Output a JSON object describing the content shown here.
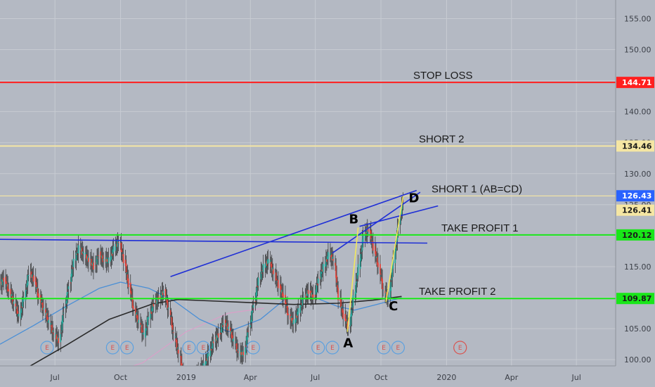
{
  "chart_data": {
    "type": "candlestick",
    "ylim": [
      99,
      158
    ],
    "y_ticks": [
      {
        "value": 100,
        "label": "100.00"
      },
      {
        "value": 105,
        "label": "105.00"
      },
      {
        "value": 110,
        "label": "110.00"
      },
      {
        "value": 115,
        "label": "115.00"
      },
      {
        "value": 120,
        "label": "120.00"
      },
      {
        "value": 125,
        "label": "125.00"
      },
      {
        "value": 130,
        "label": "130.00"
      },
      {
        "value": 135,
        "label": "135.00"
      },
      {
        "value": 140,
        "label": "140.00"
      },
      {
        "value": 145,
        "label": "145.00"
      },
      {
        "value": 150,
        "label": "150.00"
      },
      {
        "value": 155,
        "label": "155.00"
      }
    ],
    "x_ticks": [
      {
        "label": "Jul",
        "date": "2018-07-01"
      },
      {
        "label": "Oct",
        "date": "2018-10-01"
      },
      {
        "label": "2019",
        "date": "2019-01-01"
      },
      {
        "label": "Apr",
        "date": "2019-04-01"
      },
      {
        "label": "Jul",
        "date": "2019-07-01"
      },
      {
        "label": "Oct",
        "date": "2019-10-01"
      },
      {
        "label": "2020",
        "date": "2020-01-01"
      },
      {
        "label": "Apr",
        "date": "2020-04-01"
      },
      {
        "label": "Jul",
        "date": "2020-07-01"
      }
    ],
    "xlim": [
      "2018-04-15",
      "2020-08-25"
    ],
    "levels": [
      {
        "label": "STOP LOSS",
        "tag": "144.71",
        "value": 144.71,
        "color": "#ff1f1f",
        "tag_bg": "#ff1f1f",
        "tag_fg": "#ffffff"
      },
      {
        "label": "SHORT 2",
        "tag": "134.46",
        "value": 134.46,
        "color": "#f5e6a3",
        "tag_bg": "#f5e6a3",
        "tag_fg": "#1a1a1a"
      },
      {
        "label": "SHORT 1 (AB=CD)",
        "tag": "126.41",
        "value": 126.41,
        "color": "#f5e6a3",
        "tag_bg": "#f5e6a3",
        "tag_fg": "#1a1a1a"
      },
      {
        "label": "TAKE PROFIT 1",
        "tag": "120.12",
        "value": 120.12,
        "color": "#19e619",
        "tag_bg": "#19e619",
        "tag_fg": "#1a1a1a"
      },
      {
        "label": "TAKE PROFIT 2",
        "tag": "109.87",
        "value": 109.87,
        "color": "#19e619",
        "tag_bg": "#19e619",
        "tag_fg": "#1a1a1a"
      }
    ],
    "last_price": {
      "tag": "126.43",
      "value": 126.43,
      "tag_bg": "#2962ff",
      "tag_fg": "#ffffff"
    },
    "pattern_points": [
      {
        "label": "A",
        "date": "2019-08-15",
        "price": 104.5
      },
      {
        "label": "B",
        "date": "2019-08-30",
        "price": 121.3
      },
      {
        "label": "C",
        "date": "2019-10-08",
        "price": 109.3
      },
      {
        "label": "D",
        "date": "2019-11-01",
        "price": 126.3
      }
    ],
    "earnings_markers": [
      "2018-06-20",
      "2018-09-20",
      "2018-10-10",
      "2019-01-05",
      "2019-01-25",
      "2019-04-05",
      "2019-07-05",
      "2019-07-25",
      "2019-10-05",
      "2019-10-25",
      "2020-01-20"
    ],
    "candles": [
      [
        "2018-04-16",
        112,
        113
      ],
      [
        "2018-04-23",
        113,
        111
      ],
      [
        "2018-04-30",
        111,
        109
      ],
      [
        "2018-05-07",
        109,
        107
      ],
      [
        "2018-05-14",
        107,
        110
      ],
      [
        "2018-05-21",
        110,
        114
      ],
      [
        "2018-05-28",
        114,
        113
      ],
      [
        "2018-06-04",
        113,
        110
      ],
      [
        "2018-06-11",
        110,
        108
      ],
      [
        "2018-06-18",
        108,
        106
      ],
      [
        "2018-06-25",
        106,
        104
      ],
      [
        "2018-07-02",
        104,
        103
      ],
      [
        "2018-07-09",
        103,
        108
      ],
      [
        "2018-07-16",
        108,
        112
      ],
      [
        "2018-07-23",
        112,
        116
      ],
      [
        "2018-07-30",
        116,
        118
      ],
      [
        "2018-08-06",
        118,
        117
      ],
      [
        "2018-08-13",
        117,
        116
      ],
      [
        "2018-08-20",
        116,
        115
      ],
      [
        "2018-08-27",
        115,
        117
      ],
      [
        "2018-09-03",
        117,
        116
      ],
      [
        "2018-09-10",
        116,
        116
      ],
      [
        "2018-09-17",
        116,
        118
      ],
      [
        "2018-09-24",
        118,
        119
      ],
      [
        "2018-10-01",
        119,
        116
      ],
      [
        "2018-10-08",
        116,
        112
      ],
      [
        "2018-10-15",
        112,
        108
      ],
      [
        "2018-10-22",
        108,
        106
      ],
      [
        "2018-10-29",
        106,
        104
      ],
      [
        "2018-11-05",
        104,
        107
      ],
      [
        "2018-11-12",
        107,
        109
      ],
      [
        "2018-11-19",
        109,
        110
      ],
      [
        "2018-11-26",
        110,
        111
      ],
      [
        "2018-12-03",
        111,
        108
      ],
      [
        "2018-12-10",
        108,
        104
      ],
      [
        "2018-12-17",
        104,
        101
      ],
      [
        "2018-12-24",
        101,
        97
      ],
      [
        "2018-12-31",
        97,
        95
      ],
      [
        "2019-01-07",
        95,
        97
      ],
      [
        "2019-01-14",
        97,
        98
      ],
      [
        "2019-01-21",
        98,
        99
      ],
      [
        "2019-01-28",
        99,
        101
      ],
      [
        "2019-02-04",
        101,
        103
      ],
      [
        "2019-02-11",
        103,
        104
      ],
      [
        "2019-02-18",
        104,
        106
      ],
      [
        "2019-02-25",
        106,
        105
      ],
      [
        "2019-03-04",
        105,
        103
      ],
      [
        "2019-03-11",
        103,
        101
      ],
      [
        "2019-03-18",
        101,
        101
      ],
      [
        "2019-03-25",
        101,
        105
      ],
      [
        "2019-04-01",
        105,
        109
      ],
      [
        "2019-04-08",
        109,
        113
      ],
      [
        "2019-04-15",
        113,
        115
      ],
      [
        "2019-04-22",
        115,
        116
      ],
      [
        "2019-04-29",
        116,
        114
      ],
      [
        "2019-05-06",
        114,
        112
      ],
      [
        "2019-05-13",
        112,
        110
      ],
      [
        "2019-05-20",
        110,
        107
      ],
      [
        "2019-05-27",
        107,
        106
      ],
      [
        "2019-06-03",
        106,
        108
      ],
      [
        "2019-06-10",
        108,
        110
      ],
      [
        "2019-06-17",
        110,
        111
      ],
      [
        "2019-06-24",
        111,
        110
      ],
      [
        "2019-07-01",
        110,
        113
      ],
      [
        "2019-07-08",
        113,
        115
      ],
      [
        "2019-07-15",
        115,
        117
      ],
      [
        "2019-07-22",
        117,
        116
      ],
      [
        "2019-07-29",
        116,
        110
      ],
      [
        "2019-08-05",
        110,
        107
      ],
      [
        "2019-08-12",
        107,
        105
      ],
      [
        "2019-08-19",
        105,
        110
      ],
      [
        "2019-08-26",
        110,
        115
      ],
      [
        "2019-09-02",
        115,
        120
      ],
      [
        "2019-09-09",
        120,
        121
      ],
      [
        "2019-09-16",
        121,
        118
      ],
      [
        "2019-09-23",
        118,
        115
      ],
      [
        "2019-09-30",
        115,
        111
      ],
      [
        "2019-10-07",
        111,
        110
      ],
      [
        "2019-10-14",
        110,
        116
      ],
      [
        "2019-10-21",
        116,
        122
      ],
      [
        "2019-10-28",
        122,
        126
      ]
    ],
    "ma_short": [
      [
        "2018-04-15",
        102.5
      ],
      [
        "2018-06-01",
        105.5
      ],
      [
        "2018-07-15",
        108.5
      ],
      [
        "2018-09-01",
        111.5
      ],
      [
        "2018-10-01",
        112.5
      ],
      [
        "2018-11-10",
        111.5
      ],
      [
        "2018-12-15",
        109.5
      ],
      [
        "2019-01-20",
        106.5
      ],
      [
        "2019-03-01",
        104.5
      ],
      [
        "2019-04-15",
        106.5
      ],
      [
        "2019-05-20",
        109.8
      ],
      [
        "2019-07-01",
        110.0
      ],
      [
        "2019-08-01",
        108.6
      ],
      [
        "2019-08-25",
        108.0
      ],
      [
        "2019-09-25",
        108.9
      ],
      [
        "2019-10-30",
        110.0
      ]
    ],
    "ma_long": [
      [
        "2018-05-20",
        98.5
      ],
      [
        "2018-07-15",
        102.2
      ],
      [
        "2018-09-15",
        106.5
      ],
      [
        "2018-11-15",
        109.0
      ],
      [
        "2018-12-20",
        109.7
      ],
      [
        "2019-02-01",
        109.5
      ],
      [
        "2019-04-01",
        109.2
      ],
      [
        "2019-06-01",
        108.9
      ],
      [
        "2019-08-01",
        109.1
      ],
      [
        "2019-09-20",
        109.6
      ],
      [
        "2019-10-30",
        110.2
      ]
    ],
    "ma_pink": [
      [
        "2018-08-01",
        96.0
      ],
      [
        "2018-11-01",
        99.5
      ],
      [
        "2019-01-01",
        104.5
      ],
      [
        "2019-03-01",
        107.5
      ],
      [
        "2019-04-20",
        108.3
      ]
    ],
    "trendlines": [
      {
        "color": "#1f2fd6",
        "p1": [
          "2018-04-15",
          119.4
        ],
        "p2": [
          "2019-12-05",
          118.8
        ]
      },
      {
        "color": "#1f2fd6",
        "p1": [
          "2018-12-10",
          113.4
        ],
        "p2": [
          "2019-11-20",
          127.3
        ]
      },
      {
        "color": "#1f2fd6",
        "p1": [
          "2019-07-25",
          117.2
        ],
        "p2": [
          "2019-11-25",
          127.0
        ]
      },
      {
        "color": "#1f2fd6",
        "p1": [
          "2019-09-01",
          121.5
        ],
        "p2": [
          "2019-12-20",
          124.8
        ]
      }
    ],
    "abcd_legs": [
      {
        "color": "#f2e85c",
        "p1": [
          "2019-08-15",
          104.5
        ],
        "p2": [
          "2019-08-30",
          121.3
        ]
      },
      {
        "color": "#f2e85c",
        "p1": [
          "2019-10-08",
          109.3
        ],
        "p2": [
          "2019-11-01",
          126.3
        ]
      }
    ]
  }
}
